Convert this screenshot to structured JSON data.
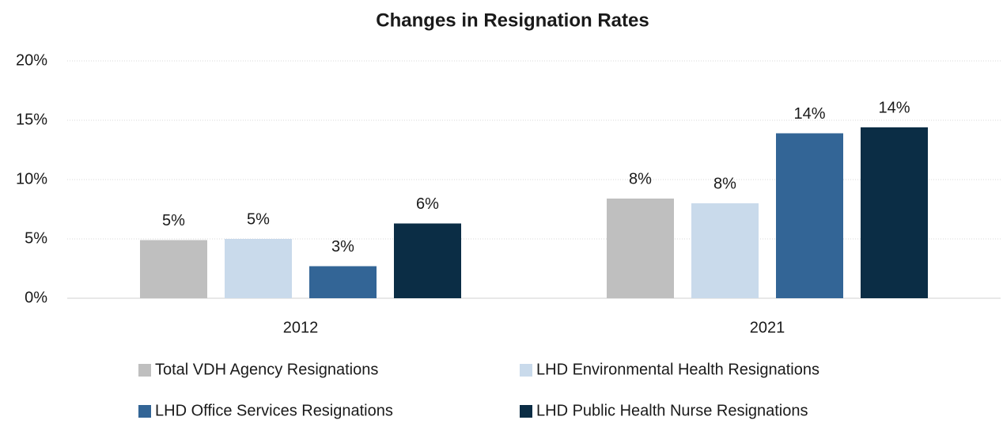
{
  "chart_data": {
    "type": "bar",
    "title": "Changes in Resignation Rates",
    "categories": [
      "2012",
      "2021"
    ],
    "series": [
      {
        "name": "Total VDH Agency Resignations",
        "color": "#bfbfbf",
        "values": [
          4.9,
          8.4
        ],
        "value_labels": [
          "5%",
          "8%"
        ]
      },
      {
        "name": "LHD Environmental Health Resignations",
        "color": "#c9daeb",
        "values": [
          5.0,
          8.0
        ],
        "value_labels": [
          "5%",
          "8%"
        ]
      },
      {
        "name": "LHD Office Services Resignations",
        "color": "#336596",
        "values": [
          2.7,
          13.9
        ],
        "value_labels": [
          "3%",
          "14%"
        ]
      },
      {
        "name": "LHD Public Health Nurse Resignations",
        "color": "#0b2d45",
        "values": [
          6.3,
          14.4
        ],
        "value_labels": [
          "6%",
          "14%"
        ]
      }
    ],
    "ylim": [
      0,
      20
    ],
    "yticks": [
      {
        "value": 0,
        "label": "0%"
      },
      {
        "value": 5,
        "label": "5%"
      },
      {
        "value": 10,
        "label": "10%"
      },
      {
        "value": 15,
        "label": "15%"
      },
      {
        "value": 20,
        "label": "20%"
      }
    ],
    "grid": true,
    "legend": "bottom"
  }
}
